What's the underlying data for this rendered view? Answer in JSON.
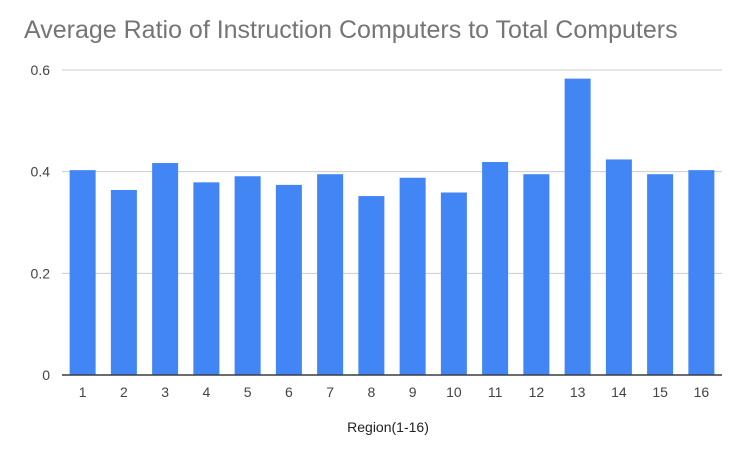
{
  "chart_data": {
    "type": "bar",
    "title": "Average Ratio of Instruction Computers to Total Computers",
    "xlabel": "Region(1-16)",
    "ylabel": "",
    "categories": [
      "1",
      "2",
      "3",
      "4",
      "5",
      "6",
      "7",
      "8",
      "9",
      "10",
      "11",
      "12",
      "13",
      "14",
      "15",
      "16"
    ],
    "values": [
      0.403,
      0.364,
      0.417,
      0.379,
      0.391,
      0.374,
      0.395,
      0.352,
      0.388,
      0.359,
      0.419,
      0.395,
      0.583,
      0.424,
      0.395,
      0.403
    ],
    "ylim": [
      0,
      0.6
    ],
    "yticks": [
      0,
      0.2,
      0.4,
      0.6
    ],
    "ytick_labels": [
      "0",
      "0.2",
      "0.4",
      "0.6"
    ],
    "grid": true,
    "legend": "none",
    "bar_color": "#4285f4",
    "grid_color": "#cccccc",
    "baseline_color": "#333333"
  }
}
